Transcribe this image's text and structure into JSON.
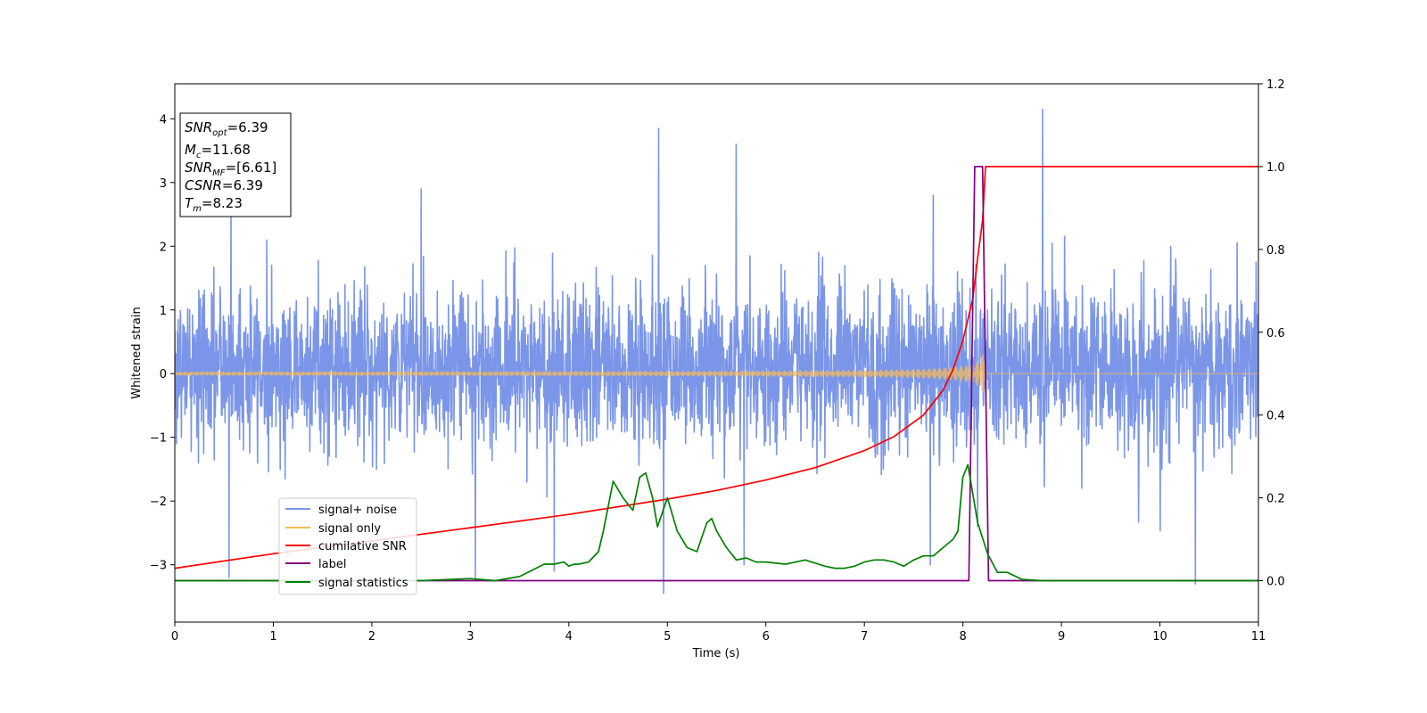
{
  "chart_data": {
    "type": "line",
    "xlabel": "Time (s)",
    "ylabel": "Whitened strain",
    "xlim": [
      0,
      11
    ],
    "ylim": [
      -3.9,
      4.55
    ],
    "y2lim": [
      -0.1,
      1.2
    ],
    "x_ticks": [
      "0",
      "1",
      "2",
      "3",
      "4",
      "5",
      "6",
      "7",
      "8",
      "9",
      "10",
      "11"
    ],
    "y_ticks": [
      "−3",
      "−2",
      "−1",
      "0",
      "1",
      "2",
      "3",
      "4"
    ],
    "y2_ticks": [
      "0.0",
      "0.2",
      "0.4",
      "0.6",
      "0.8",
      "1.0",
      "1.2"
    ],
    "grid": false,
    "legend_position": "lower-left",
    "info_box": {
      "snr_opt": {
        "base": "SNR",
        "sub": "opt",
        "rest": "=6.39"
      },
      "mc": {
        "base": "M",
        "sub": "c",
        "rest": "=11.68"
      },
      "snr_mf": {
        "base": "SNR",
        "sub": "MF",
        "rest": "=[6.61]"
      },
      "csnr": {
        "base": "CSNR",
        "rest": "=6.39"
      },
      "tm": {
        "base": "T",
        "sub": "m",
        "rest": "=8.23"
      }
    },
    "series": [
      {
        "name": "signal+ noise",
        "axis": "left",
        "color": "#7b96e8",
        "kind": "noise",
        "std": 0.62,
        "mean": 0.1,
        "x_range": [
          0,
          11
        ],
        "spikes": [
          [
            0.55,
            -3.2
          ],
          [
            0.57,
            2.8
          ],
          [
            2.5,
            2.9
          ],
          [
            3.05,
            -3.2
          ],
          [
            3.85,
            -3.1
          ],
          [
            4.91,
            3.85
          ],
          [
            4.96,
            -3.45
          ],
          [
            5.7,
            3.6
          ],
          [
            5.78,
            -3.0
          ],
          [
            7.67,
            -3.0
          ],
          [
            7.7,
            2.8
          ],
          [
            8.15,
            -2.4
          ],
          [
            8.81,
            4.15
          ],
          [
            10.36,
            -3.3
          ]
        ]
      },
      {
        "name": "signal only",
        "axis": "left",
        "color": "#f5b95a",
        "kind": "chirp",
        "tc": 8.23,
        "amp_base": 0.018,
        "amp_peak": 0.5
      },
      {
        "name": "cumilative SNR",
        "axis": "right",
        "color": "#ff0000",
        "kind": "line",
        "x": [
          0,
          1,
          2,
          3,
          4,
          5,
          5.5,
          6,
          6.5,
          7,
          7.3,
          7.6,
          7.8,
          7.9,
          8.0,
          8.1,
          8.15,
          8.2,
          8.23,
          11
        ],
        "y": [
          0.03,
          0.065,
          0.096,
          0.128,
          0.16,
          0.197,
          0.218,
          0.243,
          0.273,
          0.314,
          0.348,
          0.4,
          0.46,
          0.51,
          0.58,
          0.68,
          0.78,
          0.87,
          1.0,
          1.0
        ]
      },
      {
        "name": "label",
        "axis": "right",
        "color": "#800080",
        "kind": "line",
        "x": [
          0,
          8.06,
          8.12,
          8.2,
          8.26,
          11
        ],
        "y": [
          0,
          0,
          1,
          1,
          0,
          0
        ]
      },
      {
        "name": "signal statistics",
        "axis": "right",
        "color": "#008000",
        "kind": "line",
        "x": [
          0,
          0.5,
          1,
          1.5,
          2,
          2.5,
          3,
          3.25,
          3.5,
          3.75,
          3.85,
          3.95,
          4.0,
          4.05,
          4.1,
          4.2,
          4.3,
          4.35,
          4.45,
          4.55,
          4.65,
          4.72,
          4.78,
          4.85,
          4.9,
          5.0,
          5.1,
          5.2,
          5.3,
          5.4,
          5.45,
          5.5,
          5.6,
          5.7,
          5.8,
          5.9,
          6.0,
          6.2,
          6.4,
          6.6,
          6.7,
          6.8,
          6.9,
          7.0,
          7.1,
          7.2,
          7.3,
          7.4,
          7.5,
          7.6,
          7.7,
          7.8,
          7.9,
          7.95,
          8.0,
          8.05,
          8.15,
          8.25,
          8.35,
          8.45,
          8.6,
          8.8,
          9,
          10,
          11
        ],
        "y": [
          0,
          0,
          0,
          0,
          0,
          0,
          0.005,
          0,
          0.01,
          0.04,
          0.04,
          0.045,
          0.035,
          0.04,
          0.04,
          0.045,
          0.07,
          0.12,
          0.24,
          0.2,
          0.17,
          0.25,
          0.26,
          0.2,
          0.13,
          0.2,
          0.12,
          0.08,
          0.07,
          0.14,
          0.15,
          0.12,
          0.08,
          0.05,
          0.055,
          0.045,
          0.045,
          0.04,
          0.05,
          0.035,
          0.03,
          0.03,
          0.035,
          0.045,
          0.05,
          0.05,
          0.045,
          0.035,
          0.05,
          0.06,
          0.06,
          0.08,
          0.1,
          0.12,
          0.25,
          0.28,
          0.14,
          0.065,
          0.02,
          0.02,
          0.003,
          0,
          0,
          0,
          0
        ]
      }
    ]
  }
}
